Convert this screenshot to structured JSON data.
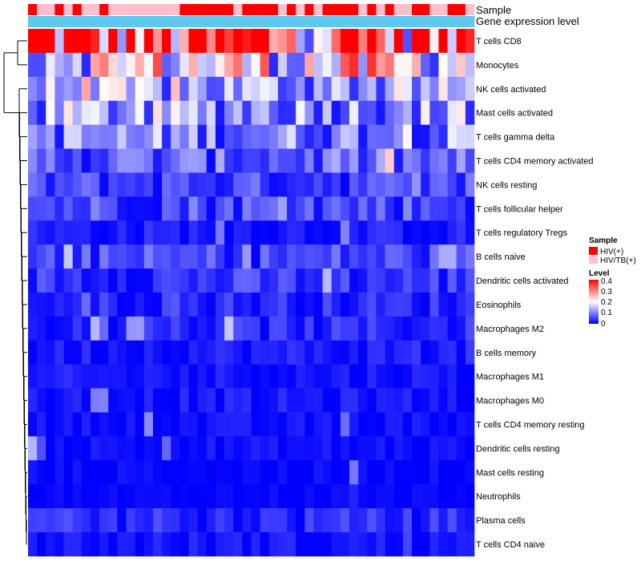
{
  "chart_data": {
    "type": "heatmap",
    "row_labels": [
      "T cells CD8",
      "Monocytes",
      "NK cells activated",
      "Mast cells activated",
      "T cells gamma delta",
      "T cells CD4 memory activated",
      "NK cells resting",
      "T cells follicular helper",
      "T cells regulatory  Tregs",
      "B cells naive",
      "Dendritic cells activated",
      "Eosinophils",
      "Macrophages M2",
      "B cells memory",
      "Macrophages M1",
      "Macrophages M0",
      "T cells CD4 memory resting",
      "Dendritic cells resting",
      "Mast cells resting",
      "Neutrophils",
      "Plasma cells",
      "T cells CD4 naive"
    ],
    "annotation_rows": [
      "Sample",
      "Gene expression level"
    ],
    "sample_groups": [
      "HIV(+)",
      "HIV/TB(+)",
      "HIV/TB(+)",
      "HIV(+)",
      "HIV/TB(+)",
      "HIV(+)",
      "HIV/TB(+)",
      "HIV/TB(+)",
      "HIV(+)",
      "HIV/TB(+)",
      "HIV/TB(+)",
      "HIV/TB(+)",
      "HIV/TB(+)",
      "HIV/TB(+)",
      "HIV/TB(+)",
      "HIV/TB(+)",
      "HIV/TB(+)",
      "HIV(+)",
      "HIV(+)",
      "HIV(+)",
      "HIV(+)",
      "HIV(+)",
      "HIV(+)",
      "HIV/TB(+)",
      "HIV(+)",
      "HIV(+)",
      "HIV(+)",
      "HIV(+)",
      "HIV/TB(+)",
      "HIV(+)",
      "HIV/TB(+)",
      "HIV(+)",
      "HIV/TB(+)",
      "HIV(+)",
      "HIV(+)",
      "HIV(+)",
      "HIV(+)",
      "HIV/TB(+)",
      "HIV(+)",
      "HIV/TB(+)",
      "HIV(+)",
      "HIV/TB(+)",
      "HIV/TB(+)",
      "HIV(+)",
      "HIV(+)",
      "HIV/TB(+)",
      "HIV/TB(+)",
      "HIV(+)",
      "HIV(+)",
      "HIV/TB(+)"
    ],
    "value_range": [
      0,
      0.4
    ],
    "row_means": [
      0.33,
      0.2,
      0.12,
      0.12,
      0.1,
      0.07,
      0.05,
      0.06,
      0.02,
      0.05,
      0.04,
      0.03,
      0.03,
      0.02,
      0.015,
      0.015,
      0.01,
      0.01,
      0.005,
      0.003,
      0.03,
      0.015
    ],
    "n_samples": 50,
    "legend": {
      "sample_title": "Sample",
      "groups": [
        {
          "label": "HIV(+)",
          "color": "#ff0000"
        },
        {
          "label": "HIV/TB(+)",
          "color": "#ffc0cb"
        }
      ],
      "level_title": "Level",
      "ticks": [
        "0.4",
        "0.3",
        "0.2",
        "0.1",
        "0"
      ]
    },
    "colors": {
      "low": "#0000ff",
      "mid": "#ffffff",
      "high": "#ff0000",
      "expression_bar": "#5ec8ee"
    }
  }
}
